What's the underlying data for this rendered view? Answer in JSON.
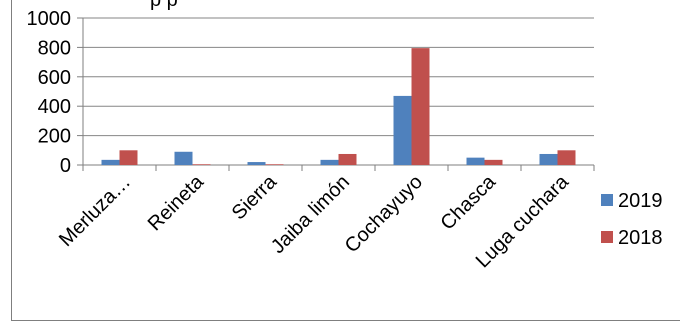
{
  "chart_data": {
    "type": "bar",
    "title_fragment": "p      p",
    "categories": [
      "Merluza…",
      "Reineta",
      "Sierra",
      "Jaiba limón",
      "Cochayuyo",
      "Chasca",
      "Luga cuchara"
    ],
    "series": [
      {
        "name": "2019",
        "color": "#4f81bd",
        "values": [
          35,
          90,
          20,
          35,
          470,
          50,
          75
        ]
      },
      {
        "name": "2018",
        "color": "#c0504d",
        "values": [
          100,
          5,
          5,
          75,
          795,
          35,
          100
        ]
      }
    ],
    "ylim": [
      0,
      1000
    ],
    "yticks": [
      0,
      200,
      400,
      600,
      800,
      1000
    ],
    "grid": true,
    "legend_position": "right"
  }
}
